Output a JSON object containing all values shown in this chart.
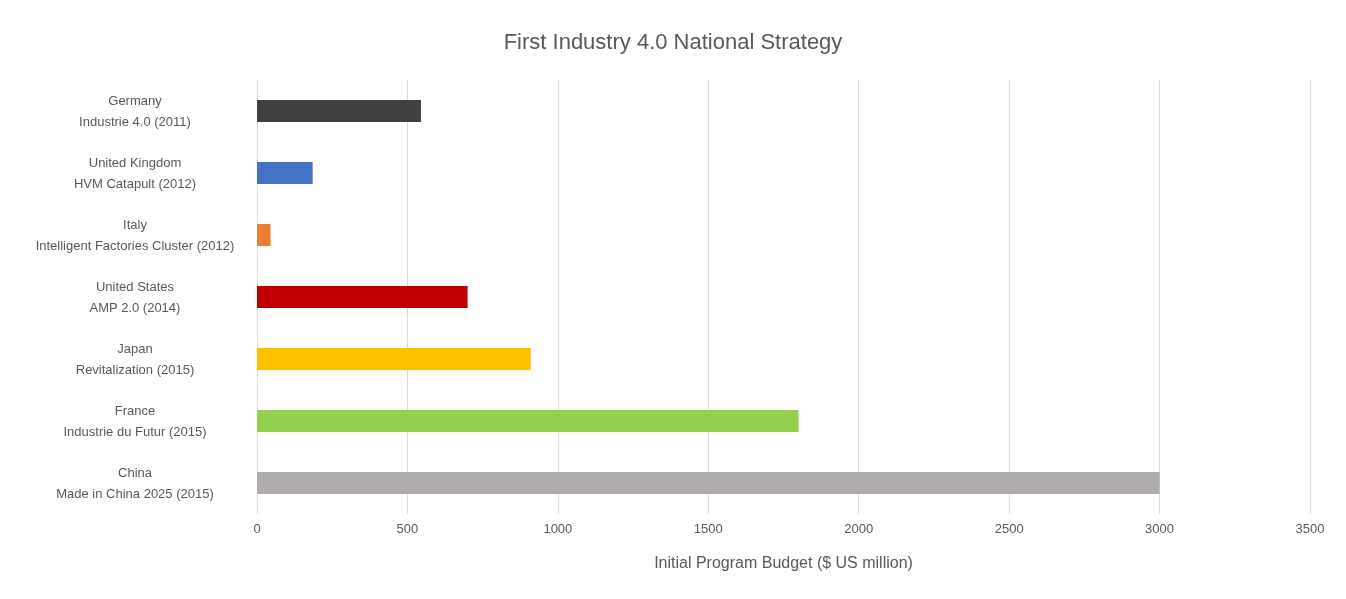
{
  "chart_data": {
    "type": "bar",
    "orientation": "horizontal",
    "title": "First Industry 4.0 National Strategy",
    "xlabel": "Initial Program Budget ($ US million)",
    "categories": [
      "Germany\nIndustrie 4.0 (2011)",
      "United Kingdom\nHVM Catapult (2012)",
      "Italy\nIntelligent Factories Cluster (2012)",
      "United States\nAMP 2.0 (2014)",
      "Japan\nRevitalization (2015)",
      "France\nIndustrie du Futur (2015)",
      "China\nMade in China 2025 (2015)"
    ],
    "values": [
      545,
      185,
      45,
      700,
      910,
      1800,
      3000
    ],
    "colors": [
      "#404040",
      "#4472c4",
      "#ed7d31",
      "#c00000",
      "#ffc000",
      "#92d050",
      "#afabab"
    ],
    "xlim": [
      0,
      3500
    ],
    "xticks": [
      0,
      500,
      1000,
      1500,
      2000,
      2500,
      3000,
      3500
    ],
    "grid": "x"
  }
}
